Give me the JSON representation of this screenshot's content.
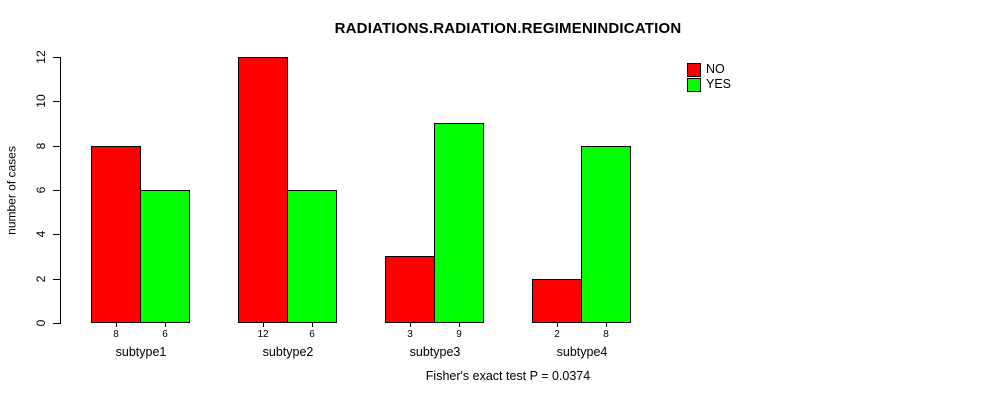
{
  "chart_data": {
    "type": "bar",
    "title": "RADIATIONS.RADIATION.REGIMENINDICATION",
    "caption": "Fisher's exact test P = 0.0374",
    "ylabel": "number of cases",
    "xlabel": "",
    "categories": [
      "subtype1",
      "subtype2",
      "subtype3",
      "subtype4"
    ],
    "series": [
      {
        "name": "NO",
        "color": "#ff0000",
        "values": [
          8,
          12,
          3,
          2
        ]
      },
      {
        "name": "YES",
        "color": "#00ff00",
        "values": [
          6,
          6,
          9,
          8
        ]
      }
    ],
    "bar_value_labels": [
      [
        8,
        6
      ],
      [
        12,
        6
      ],
      [
        3,
        9
      ],
      [
        2,
        8
      ]
    ],
    "ylim": [
      0,
      12
    ],
    "yticks": [
      0,
      2,
      4,
      6,
      8,
      10,
      12
    ],
    "legend_position": "top-right",
    "grid": false,
    "bar_border_color": "#000000",
    "background": "#ffffff"
  }
}
